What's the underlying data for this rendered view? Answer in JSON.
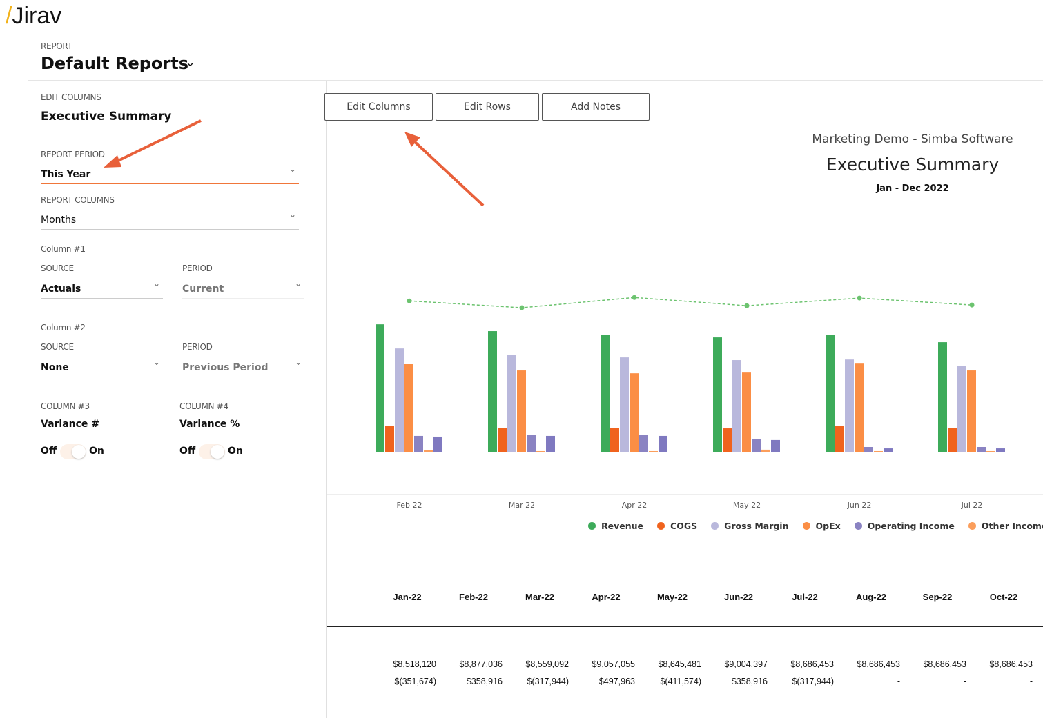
{
  "header": {
    "logo": "Jirav",
    "label": "REPORT",
    "title": "Default Reports"
  },
  "sidebar": {
    "section_label": "EDIT COLUMNS",
    "section_title": "Executive Summary",
    "report_period": {
      "label": "REPORT PERIOD",
      "value": "This Year"
    },
    "report_columns": {
      "label": "REPORT COLUMNS",
      "value": "Months"
    },
    "column1": {
      "label": "Column #1",
      "source_label": "SOURCE",
      "source": "Actuals",
      "period_label": "PERIOD",
      "period": "Current"
    },
    "column2": {
      "label": "Column #2",
      "source_label": "SOURCE",
      "source": "None",
      "period_label": "PERIOD",
      "period": "Previous Period"
    },
    "column3": {
      "label": "COLUMN #3",
      "value": "Variance #",
      "off": "Off",
      "on": "On"
    },
    "column4": {
      "label": "COLUMN #4",
      "value": "Variance %",
      "off": "Off",
      "on": "On"
    }
  },
  "toolbar": {
    "buttons": [
      "Edit Columns",
      "Edit Rows",
      "Add Notes"
    ]
  },
  "report": {
    "company": "Marketing Demo - Simba Software",
    "title": "Executive Summary",
    "period": "Jan - Dec 2022"
  },
  "chart_data": {
    "type": "bar",
    "categories": [
      "Feb 22",
      "Mar 22",
      "Apr 22",
      "May 22",
      "Jun 22",
      "Jul 22"
    ],
    "ylim": [
      0,
      12
    ],
    "series": [
      {
        "name": "Revenue",
        "color": "#3dab5a",
        "values": [
          8.98,
          8.5,
          8.25,
          8.06,
          8.25,
          7.72
        ]
      },
      {
        "name": "COGS",
        "color": "#f0631e",
        "values": [
          1.8,
          1.7,
          1.7,
          1.65,
          1.8,
          1.7
        ]
      },
      {
        "name": "Gross Margin",
        "color": "#b9b8dc",
        "values": [
          7.28,
          6.84,
          6.65,
          6.46,
          6.5,
          6.07
        ]
      },
      {
        "name": "OpEx",
        "color": "#fb8e45",
        "values": [
          6.17,
          5.73,
          5.53,
          5.58,
          6.21,
          5.73
        ]
      },
      {
        "name": "Operating Income",
        "color": "#8a83c2",
        "values": [
          1.12,
          1.17,
          1.17,
          0.92,
          0.34,
          0.34
        ]
      },
      {
        "name": "Other Income & Ex",
        "color": "#fb9e5c",
        "values": [
          0.1,
          0.05,
          0.05,
          0.15,
          0.05,
          0.05
        ]
      },
      {
        "name": null,
        "color": "#7f79c0",
        "values": [
          1.07,
          1.12,
          1.12,
          0.83,
          0.24,
          0.24
        ]
      }
    ],
    "line": {
      "color": "#6cc36f",
      "values": [
        10.63,
        10.15,
        10.87,
        10.29,
        10.83,
        10.34
      ]
    }
  },
  "table": {
    "columns": [
      "Jan-22",
      "Feb-22",
      "Mar-22",
      "Apr-22",
      "May-22",
      "Jun-22",
      "Jul-22",
      "Aug-22",
      "Sep-22",
      "Oct-22"
    ],
    "rows": [
      [
        "$8,518,120",
        "$8,877,036",
        "$8,559,092",
        "$9,057,055",
        "$8,645,481",
        "$9,004,397",
        "$8,686,453",
        "$8,686,453",
        "$8,686,453",
        "$8,686,453"
      ],
      [
        "$(351,674)",
        "$358,916",
        "$(317,944)",
        "$497,963",
        "$(411,574)",
        "$358,916",
        "$(317,944)",
        "-",
        "-",
        "-"
      ]
    ]
  }
}
